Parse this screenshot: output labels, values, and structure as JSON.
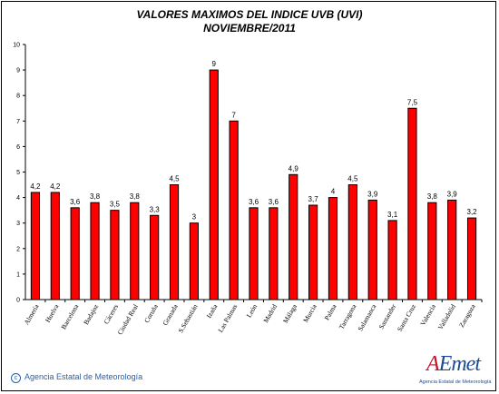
{
  "chart_data": {
    "type": "bar",
    "title": "VALORES MAXIMOS DEL INDICE UVB (UVI)",
    "subtitle": "NOVIEMBRE/2011",
    "xlabel": "",
    "ylabel": "",
    "ylim": [
      0,
      10
    ],
    "yticks": [
      "0",
      "1",
      "2",
      "3",
      "4",
      "5",
      "6",
      "7",
      "8",
      "9",
      "10"
    ],
    "categories": [
      "Almería",
      "Huelva",
      "Barcelona",
      "Badajoz",
      "Cáceres",
      "Ciudad Real",
      "Coruña",
      "Granada",
      "S.Sebastián",
      "Izaña",
      "Las Palmas",
      "León",
      "Madrid",
      "Málaga",
      "Murcia",
      "Palma",
      "Tarragona",
      "Salamanca",
      "Santander",
      "Santa Cruz",
      "Valencia",
      "Valladolid",
      "Zaragoza"
    ],
    "values": [
      4.2,
      4.2,
      3.6,
      3.8,
      3.5,
      3.8,
      3.3,
      4.5,
      3,
      9,
      7,
      3.6,
      3.6,
      4.9,
      3.7,
      4,
      4.5,
      3.9,
      3.1,
      7.5,
      3.8,
      3.9,
      3.2
    ],
    "data_labels": [
      "4,2",
      "4,2",
      "3,6",
      "3,8",
      "3,5",
      "3,8",
      "3,3",
      "4,5",
      "3",
      "9",
      "7",
      "3,6",
      "3,6",
      "4,9",
      "3,7",
      "4",
      "4,5",
      "3,9",
      "3,1",
      "7,5",
      "3,8",
      "3,9",
      "3,2"
    ],
    "bar_color": "#ff0000",
    "grid": false,
    "legend": "none"
  },
  "footer": {
    "copyright_symbol": "c",
    "agency": "Agencia Estatal de Meteorología"
  },
  "logo": {
    "word_a": "A",
    "word_rest": "Emet",
    "subtitle": "Agencia Estatal de Meteorología"
  }
}
